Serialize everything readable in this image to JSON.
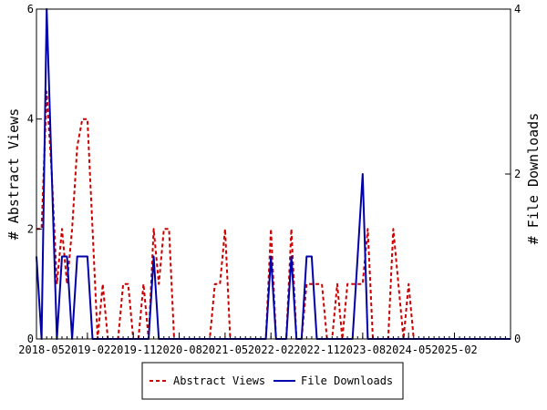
{
  "chart_data": {
    "type": "line",
    "title": "",
    "ylabel": "# Abstract Views",
    "y2label": "# File Downloads",
    "ylim": [
      0,
      6
    ],
    "y2lim": [
      0,
      4
    ],
    "yticks": [
      0,
      2,
      4,
      6
    ],
    "y2ticks": [
      0,
      2,
      4
    ],
    "xlim": [
      "2018-04",
      "2026-01"
    ],
    "xticks": [
      "2018-05",
      "2019-02",
      "2019-11",
      "2020-08",
      "2021-05",
      "2022-02",
      "2022-11",
      "2023-08",
      "2024-05",
      "2025-02"
    ],
    "grid": false,
    "legend_position": "bottom",
    "series": [
      {
        "name": "Abstract Views",
        "axis": "left",
        "color": "#cc0000",
        "style": "dashed",
        "points": [
          [
            "2018-04",
            2
          ],
          [
            "2018-05",
            2
          ],
          [
            "2018-06",
            4.5
          ],
          [
            "2018-07",
            3
          ],
          [
            "2018-08",
            1
          ],
          [
            "2018-09",
            2
          ],
          [
            "2018-10",
            1
          ],
          [
            "2018-11",
            2
          ],
          [
            "2018-12",
            3.5
          ],
          [
            "2019-01",
            4
          ],
          [
            "2019-02",
            4
          ],
          [
            "2019-03",
            2
          ],
          [
            "2019-04",
            0
          ],
          [
            "2019-05",
            1
          ],
          [
            "2019-06",
            0
          ],
          [
            "2019-07",
            0
          ],
          [
            "2019-08",
            0
          ],
          [
            "2019-09",
            1
          ],
          [
            "2019-10",
            1
          ],
          [
            "2019-11",
            0
          ],
          [
            "2019-12",
            0
          ],
          [
            "2020-01",
            1
          ],
          [
            "2020-02",
            0
          ],
          [
            "2020-03",
            2
          ],
          [
            "2020-04",
            1
          ],
          [
            "2020-05",
            2
          ],
          [
            "2020-06",
            2
          ],
          [
            "2020-07",
            0
          ],
          [
            "2020-08",
            0
          ],
          [
            "2020-09",
            0
          ],
          [
            "2020-10",
            0
          ],
          [
            "2020-11",
            0
          ],
          [
            "2020-12",
            0
          ],
          [
            "2021-01",
            0
          ],
          [
            "2021-02",
            0
          ],
          [
            "2021-03",
            1
          ],
          [
            "2021-04",
            1
          ],
          [
            "2021-05",
            2
          ],
          [
            "2021-06",
            0
          ],
          [
            "2021-07",
            0
          ],
          [
            "2021-08",
            0
          ],
          [
            "2021-09",
            0
          ],
          [
            "2021-10",
            0
          ],
          [
            "2021-11",
            0
          ],
          [
            "2021-12",
            0
          ],
          [
            "2022-01",
            0
          ],
          [
            "2022-02",
            2
          ],
          [
            "2022-03",
            0
          ],
          [
            "2022-04",
            0
          ],
          [
            "2022-05",
            0
          ],
          [
            "2022-06",
            2
          ],
          [
            "2022-07",
            0
          ],
          [
            "2022-08",
            0
          ],
          [
            "2022-09",
            1
          ],
          [
            "2022-10",
            1
          ],
          [
            "2022-11",
            1
          ],
          [
            "2022-12",
            1
          ],
          [
            "2023-01",
            0
          ],
          [
            "2023-02",
            0
          ],
          [
            "2023-03",
            1
          ],
          [
            "2023-04",
            0
          ],
          [
            "2023-05",
            1
          ],
          [
            "2023-06",
            1
          ],
          [
            "2023-07",
            1
          ],
          [
            "2023-08",
            1
          ],
          [
            "2023-09",
            2
          ],
          [
            "2023-10",
            0
          ],
          [
            "2023-11",
            0
          ],
          [
            "2023-12",
            0
          ],
          [
            "2024-01",
            0
          ],
          [
            "2024-02",
            2
          ],
          [
            "2024-03",
            1
          ],
          [
            "2024-04",
            0
          ],
          [
            "2024-05",
            1
          ],
          [
            "2024-06",
            0
          ],
          [
            "2024-07",
            0
          ],
          [
            "2024-08",
            0
          ],
          [
            "2024-09",
            0
          ],
          [
            "2024-10",
            0
          ],
          [
            "2024-11",
            0
          ],
          [
            "2024-12",
            0
          ],
          [
            "2025-01",
            0
          ],
          [
            "2025-02",
            0
          ],
          [
            "2025-03",
            0
          ],
          [
            "2025-04",
            0
          ],
          [
            "2025-05",
            0
          ],
          [
            "2025-06",
            0
          ],
          [
            "2025-07",
            0
          ],
          [
            "2025-08",
            0
          ],
          [
            "2025-09",
            0
          ],
          [
            "2025-10",
            0
          ],
          [
            "2025-11",
            0
          ],
          [
            "2025-12",
            0
          ],
          [
            "2026-01",
            0
          ]
        ]
      },
      {
        "name": "File Downloads",
        "axis": "right",
        "color": "#0000aa",
        "style": "solid",
        "points": [
          [
            "2018-04",
            1
          ],
          [
            "2018-05",
            0
          ],
          [
            "2018-06",
            4
          ],
          [
            "2018-07",
            2
          ],
          [
            "2018-08",
            0
          ],
          [
            "2018-09",
            1
          ],
          [
            "2018-10",
            1
          ],
          [
            "2018-11",
            0
          ],
          [
            "2018-12",
            1
          ],
          [
            "2019-01",
            1
          ],
          [
            "2019-02",
            1
          ],
          [
            "2019-03",
            0
          ],
          [
            "2019-04",
            0
          ],
          [
            "2019-05",
            0
          ],
          [
            "2019-06",
            0
          ],
          [
            "2019-07",
            0
          ],
          [
            "2019-08",
            0
          ],
          [
            "2019-09",
            0
          ],
          [
            "2019-10",
            0
          ],
          [
            "2019-11",
            0
          ],
          [
            "2019-12",
            0
          ],
          [
            "2020-01",
            0
          ],
          [
            "2020-02",
            0
          ],
          [
            "2020-03",
            1
          ],
          [
            "2020-04",
            0
          ],
          [
            "2020-05",
            0
          ],
          [
            "2020-06",
            0
          ],
          [
            "2020-07",
            0
          ],
          [
            "2020-08",
            0
          ],
          [
            "2020-09",
            0
          ],
          [
            "2020-10",
            0
          ],
          [
            "2020-11",
            0
          ],
          [
            "2020-12",
            0
          ],
          [
            "2021-01",
            0
          ],
          [
            "2021-02",
            0
          ],
          [
            "2021-03",
            0
          ],
          [
            "2021-04",
            0
          ],
          [
            "2021-05",
            0
          ],
          [
            "2021-06",
            0
          ],
          [
            "2021-07",
            0
          ],
          [
            "2021-08",
            0
          ],
          [
            "2021-09",
            0
          ],
          [
            "2021-10",
            0
          ],
          [
            "2021-11",
            0
          ],
          [
            "2021-12",
            0
          ],
          [
            "2022-01",
            0
          ],
          [
            "2022-02",
            1
          ],
          [
            "2022-03",
            0
          ],
          [
            "2022-04",
            0
          ],
          [
            "2022-05",
            0
          ],
          [
            "2022-06",
            1
          ],
          [
            "2022-07",
            0
          ],
          [
            "2022-08",
            0
          ],
          [
            "2022-09",
            1
          ],
          [
            "2022-10",
            1
          ],
          [
            "2022-11",
            0
          ],
          [
            "2022-12",
            0
          ],
          [
            "2023-01",
            0
          ],
          [
            "2023-02",
            0
          ],
          [
            "2023-03",
            0
          ],
          [
            "2023-04",
            0
          ],
          [
            "2023-05",
            0
          ],
          [
            "2023-06",
            0
          ],
          [
            "2023-07",
            1
          ],
          [
            "2023-08",
            2
          ],
          [
            "2023-09",
            0
          ],
          [
            "2023-10",
            0
          ],
          [
            "2023-11",
            0
          ],
          [
            "2023-12",
            0
          ],
          [
            "2024-01",
            0
          ],
          [
            "2024-02",
            0
          ],
          [
            "2024-03",
            0
          ],
          [
            "2024-04",
            0
          ],
          [
            "2024-05",
            0
          ],
          [
            "2024-06",
            0
          ],
          [
            "2024-07",
            0
          ],
          [
            "2024-08",
            0
          ],
          [
            "2024-09",
            0
          ],
          [
            "2024-10",
            0
          ],
          [
            "2024-11",
            0
          ],
          [
            "2024-12",
            0
          ],
          [
            "2025-01",
            0
          ],
          [
            "2025-02",
            0
          ],
          [
            "2025-03",
            0
          ],
          [
            "2025-04",
            0
          ],
          [
            "2025-05",
            0
          ],
          [
            "2025-06",
            0
          ],
          [
            "2025-07",
            0
          ],
          [
            "2025-08",
            0
          ],
          [
            "2025-09",
            0
          ],
          [
            "2025-10",
            0
          ],
          [
            "2025-11",
            0
          ],
          [
            "2025-12",
            0
          ],
          [
            "2026-01",
            0
          ]
        ]
      }
    ]
  }
}
